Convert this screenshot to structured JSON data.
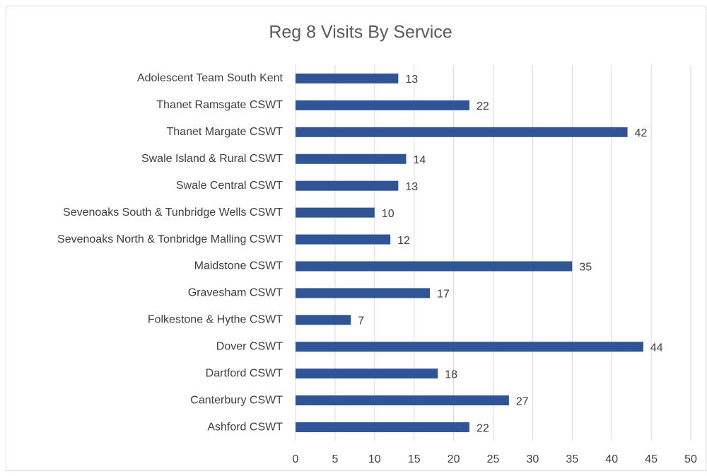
{
  "chart_data": {
    "type": "bar",
    "orientation": "horizontal",
    "title": "Reg 8 Visits By Service",
    "categories": [
      "Adolescent Team South Kent",
      "Thanet Ramsgate CSWT",
      "Thanet Margate CSWT",
      "Swale Island & Rural CSWT",
      "Swale Central CSWT",
      "Sevenoaks South & Tunbridge Wells CSWT",
      "Sevenoaks North & Tonbridge Malling CSWT",
      "Maidstone CSWT",
      "Gravesham CSWT",
      "Folkestone & Hythe CSWT",
      "Dover CSWT",
      "Dartford CSWT",
      "Canterbury CSWT",
      "Ashford CSWT"
    ],
    "values": [
      13,
      22,
      42,
      14,
      13,
      10,
      12,
      35,
      17,
      7,
      44,
      18,
      27,
      22
    ],
    "color": "#2f5597",
    "xlim": [
      0,
      50
    ],
    "xticks": [
      0,
      5,
      10,
      15,
      20,
      25,
      30,
      35,
      40,
      45,
      50
    ],
    "grid": true
  }
}
